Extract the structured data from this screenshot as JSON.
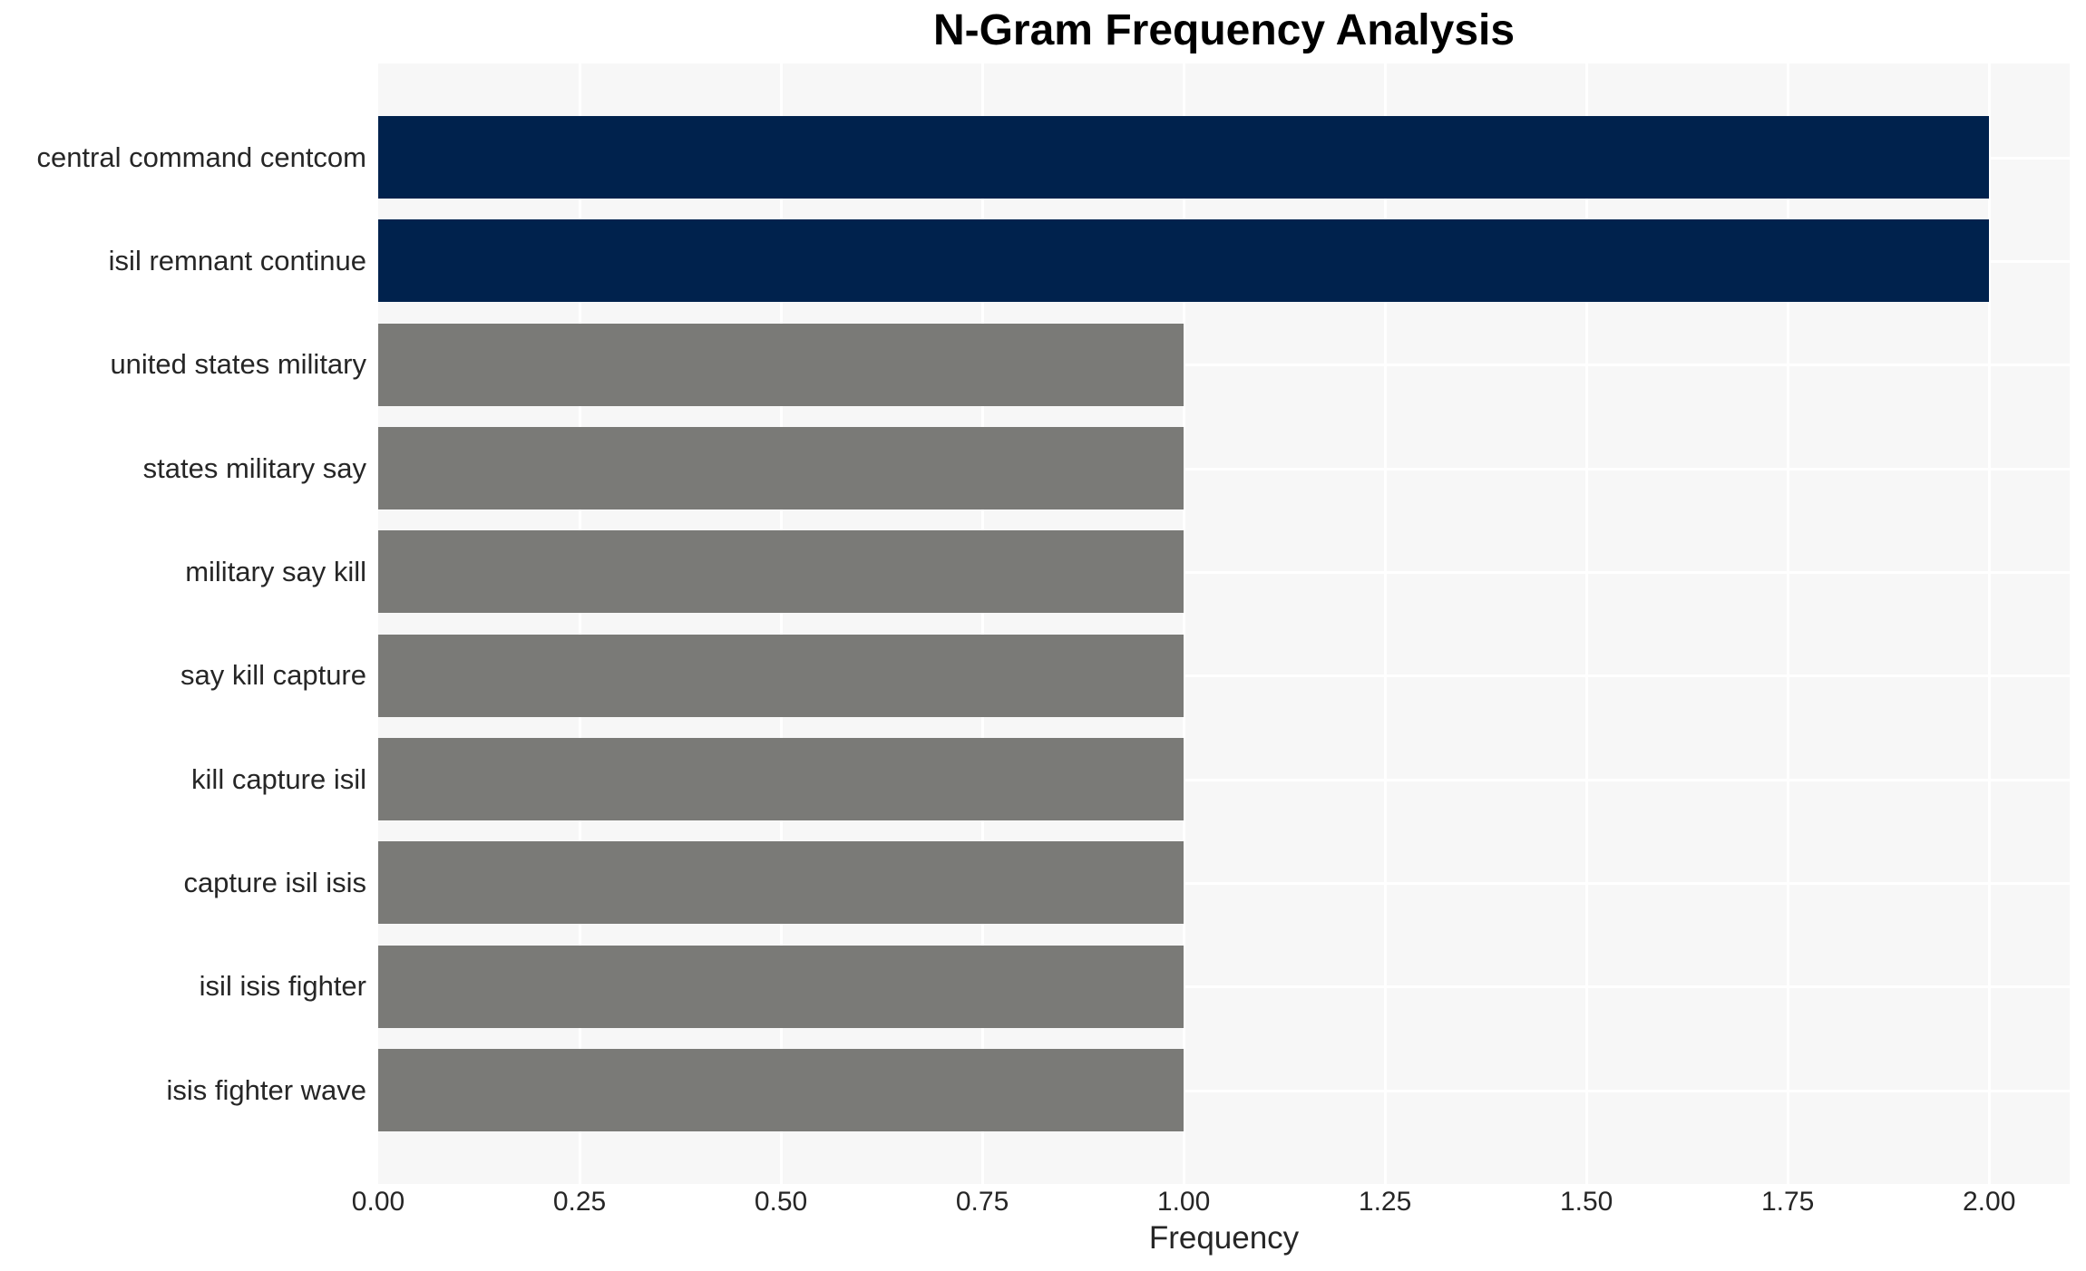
{
  "chart_data": {
    "type": "bar",
    "orientation": "horizontal",
    "title": "N-Gram Frequency Analysis",
    "xlabel": "Frequency",
    "ylabel": "",
    "categories": [
      "central command centcom",
      "isil remnant continue",
      "united states military",
      "states military say",
      "military say kill",
      "say kill capture",
      "kill capture isil",
      "capture isil isis",
      "isil isis fighter",
      "isis fighter wave"
    ],
    "values": [
      2,
      2,
      1,
      1,
      1,
      1,
      1,
      1,
      1,
      1
    ],
    "bar_colors": [
      "#00224D",
      "#00224D",
      "#7A7A77",
      "#7A7A77",
      "#7A7A77",
      "#7A7A77",
      "#7A7A77",
      "#7A7A77",
      "#7A7A77",
      "#7A7A77"
    ],
    "xtick_labels": [
      "0.00",
      "0.25",
      "0.50",
      "0.75",
      "1.00",
      "1.25",
      "1.50",
      "1.75",
      "2.00"
    ],
    "xtick_values": [
      0,
      0.25,
      0.5,
      0.75,
      1.0,
      1.25,
      1.5,
      1.75,
      2.0
    ],
    "xlim": [
      0,
      2.1
    ],
    "grid": true,
    "legend": false,
    "colors": {
      "highlight_bar": "#00224D",
      "default_bar": "#7A7A77",
      "plot_background": "#F7F7F7",
      "gridline": "#FFFFFF",
      "page_background": "#FFFFFF",
      "axis_text": "#262626",
      "title_text": "#000000"
    }
  }
}
